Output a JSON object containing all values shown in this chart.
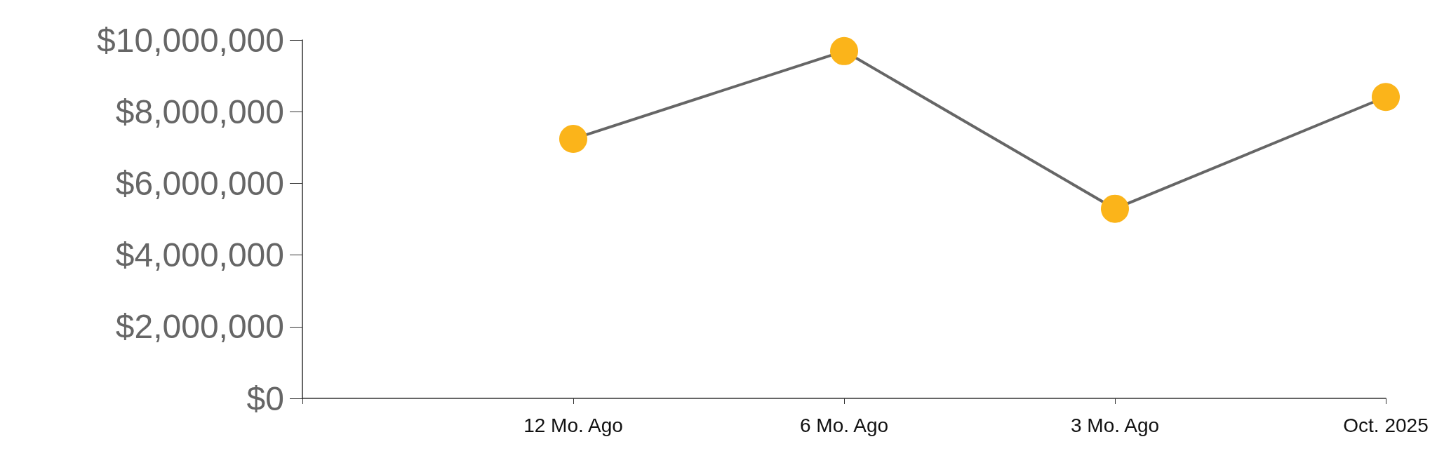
{
  "chart_data": {
    "type": "line",
    "categories": [
      null,
      "12 Mo. Ago",
      "6 Mo. Ago",
      "3 Mo. Ago",
      "Oct. 2025"
    ],
    "series": [
      {
        "color": "#666666",
        "colors": [
          null,
          "#fbb41a",
          "#fbb41a",
          "#fbb41a",
          "#fbb41a"
        ],
        "values": [
          null,
          7240000,
          9690000,
          5290000,
          8410000
        ]
      }
    ],
    "ylim": [
      0,
      10000000
    ],
    "yticks": [
      {
        "value": 0,
        "label": "$0"
      },
      {
        "value": 2000000,
        "label": "$2,000,000"
      },
      {
        "value": 4000000,
        "label": "$4,000,000"
      },
      {
        "value": 6000000,
        "label": "$6,000,000"
      },
      {
        "value": 8000000,
        "label": "$8,000,000"
      },
      {
        "value": 10000000,
        "label": "$10,000,000"
      }
    ],
    "grid": false,
    "marker": "circle",
    "line_style": "solid"
  }
}
